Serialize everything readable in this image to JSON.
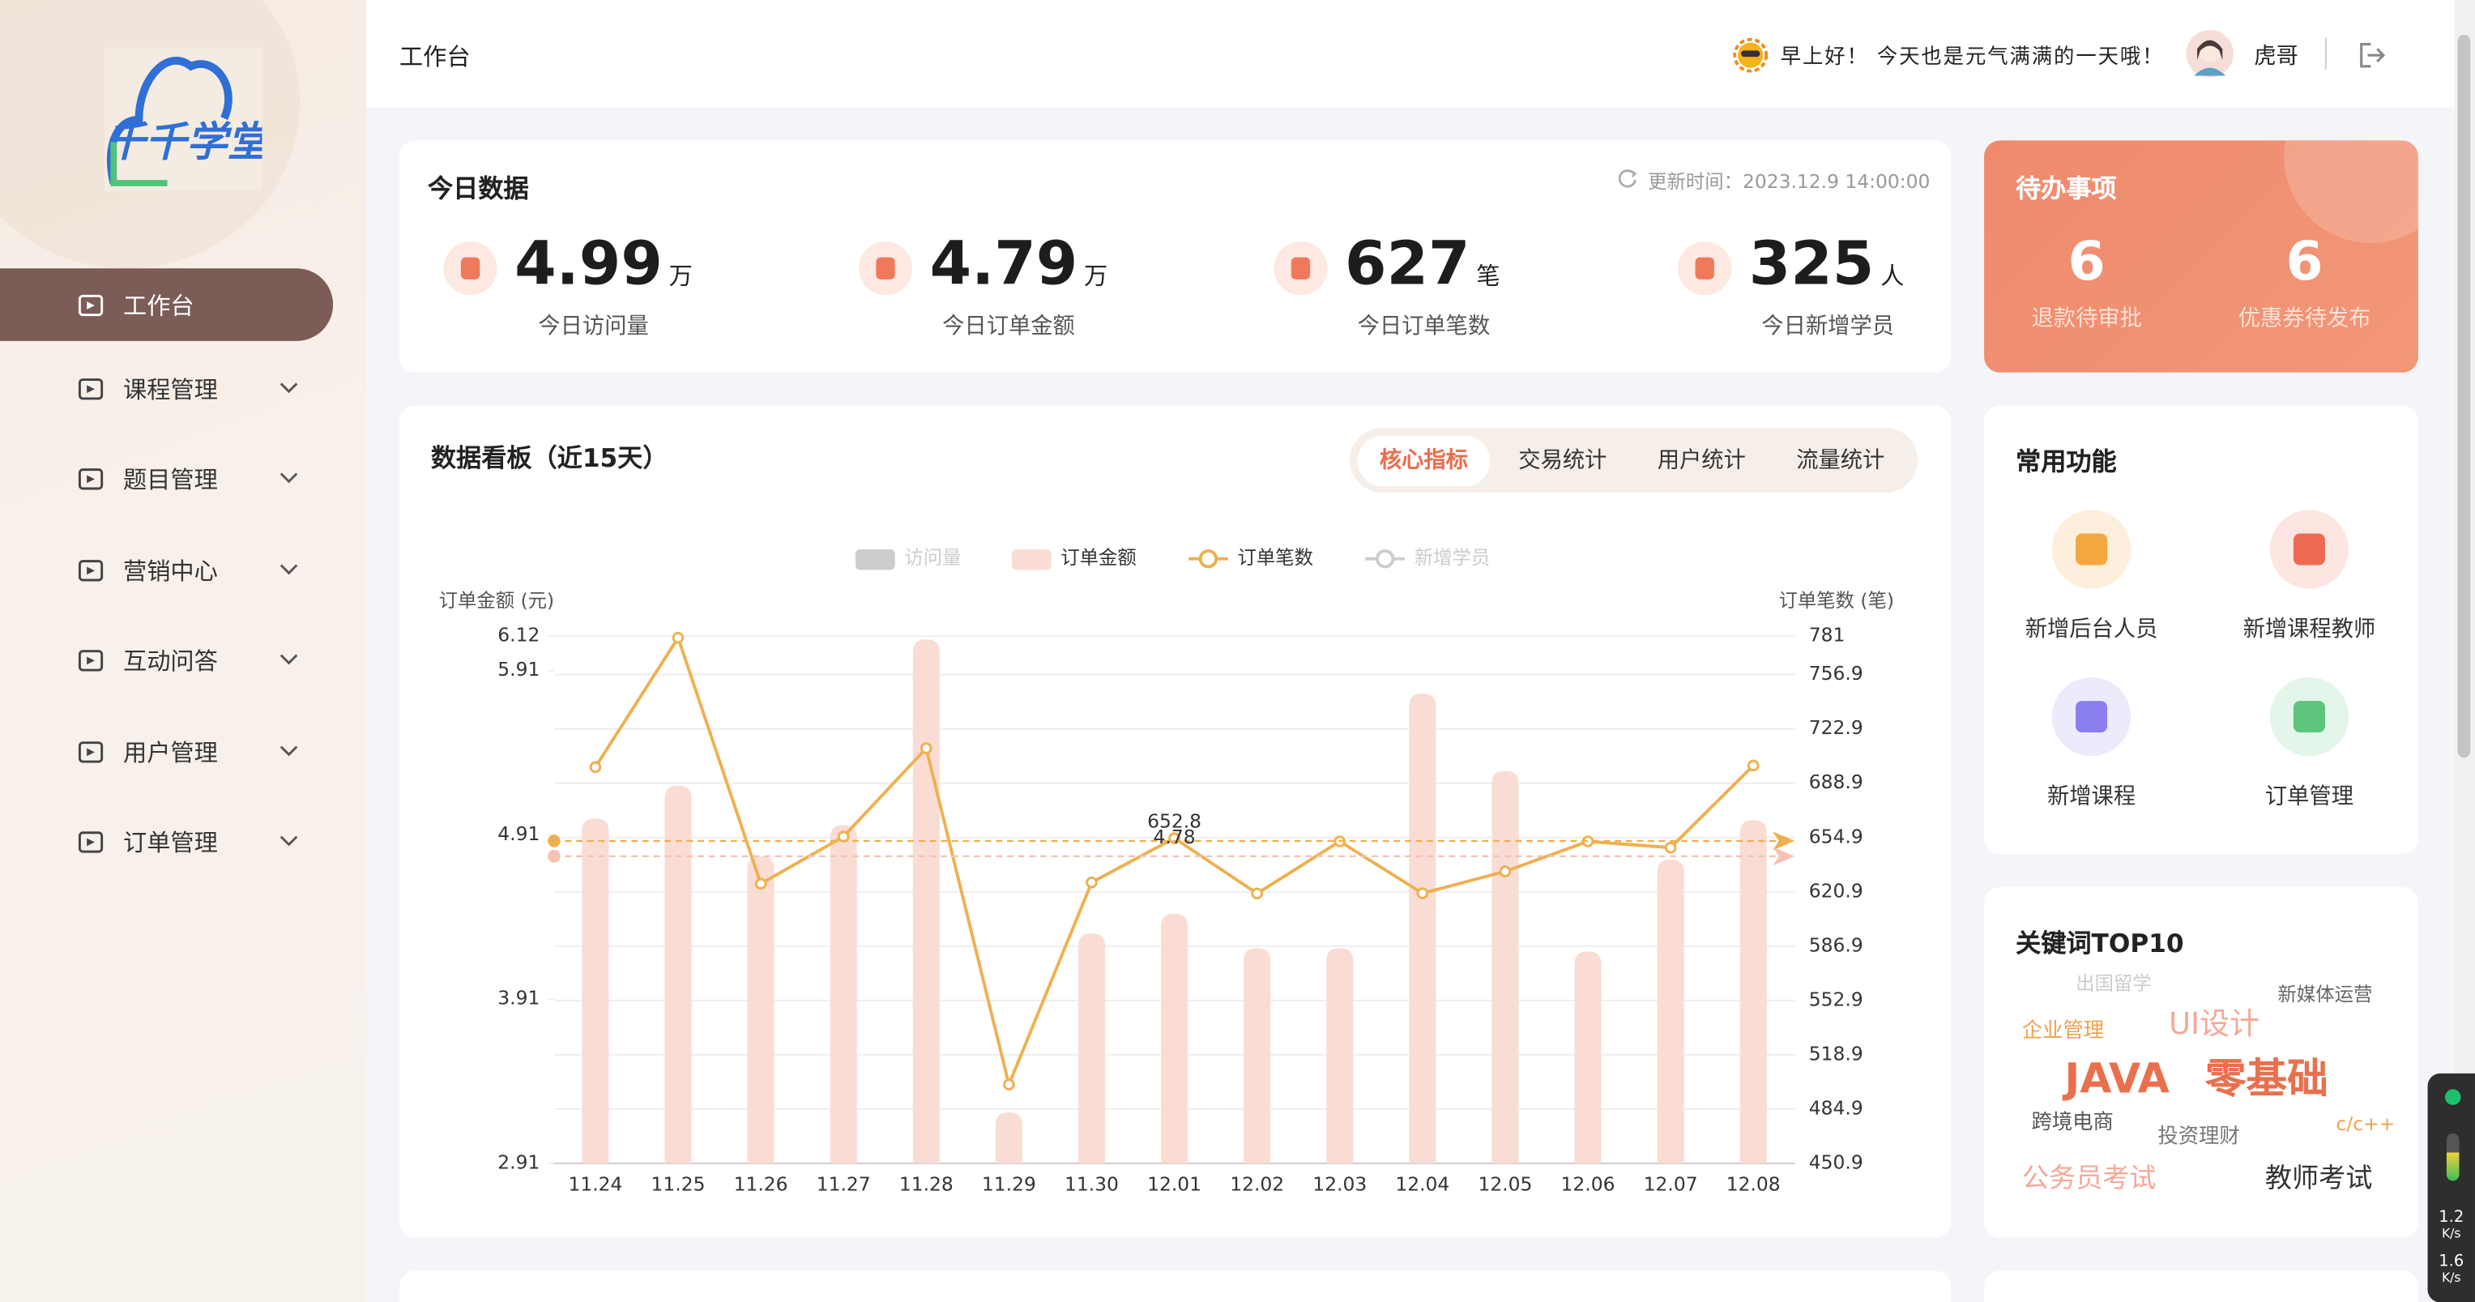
{
  "logo": {
    "text": "千千学堂"
  },
  "sidebar": {
    "items": [
      "工作台",
      "课程管理",
      "题目管理",
      "营销中心",
      "互动问答",
      "用户管理",
      "订单管理"
    ]
  },
  "header": {
    "title": "工作台",
    "greeting": "早上好！ 今天也是元气满满的一天哦！",
    "user": "虎哥"
  },
  "today": {
    "title": "今日数据",
    "updated": "更新时间：2023.12.9 14:00:00",
    "stats": [
      {
        "value": 4.99,
        "unit": "万",
        "label": "今日访问量"
      },
      {
        "value": 4.79,
        "unit": "万",
        "label": "今日订单金额"
      },
      {
        "value": 627,
        "unit": "笔",
        "label": "今日订单笔数"
      },
      {
        "value": 325,
        "unit": "人",
        "label": "今日新增学员"
      }
    ]
  },
  "todo": {
    "title": "待办事项",
    "items": [
      {
        "count": 6,
        "label": "退款待审批"
      },
      {
        "count": 6,
        "label": "优惠券待发布"
      }
    ]
  },
  "board": {
    "tabs": [
      "核心指标",
      "交易统计",
      "用户统计",
      "流量统计"
    ]
  },
  "chart_data": {
    "type": "bar",
    "title": "数据看板（近15天）",
    "y_label": "订单金额 (元)",
    "y2_label": "订单笔数 (笔)",
    "categories": [
      "11.24",
      "11.25",
      "11.26",
      "11.27",
      "11.28",
      "11.29",
      "11.30",
      "12.01",
      "12.02",
      "12.03",
      "12.04",
      "12.05",
      "12.06",
      "12.07",
      "12.08"
    ],
    "series": [
      {
        "name": "访问量",
        "color": "#cccccc",
        "visible": false
      },
      {
        "name": "订单金额",
        "type": "bar",
        "color": "#f9ddd5",
        "values": [
          5.01,
          5.21,
          4.78,
          4.97,
          6.1,
          3.22,
          4.31,
          4.43,
          4.22,
          4.22,
          5.77,
          5.3,
          4.2,
          4.76,
          5.0
        ]
      },
      {
        "name": "订单笔数",
        "type": "line",
        "axis": "y2",
        "color": "#eeb04f",
        "values": [
          699,
          780,
          626,
          655.5,
          710.8,
          500.3,
          626.8,
          654.5,
          619.9,
          652.5,
          620,
          633.7,
          652.5,
          648.6,
          700
        ]
      },
      {
        "name": "新增学员",
        "color": "#cccccc",
        "visible": false
      }
    ],
    "mark_lines": [
      {
        "value": 652.8,
        "axis": "y2",
        "color": "#eeb04f"
      },
      {
        "value": 4.78,
        "color": "#f6c2b4"
      }
    ],
    "ylim": [
      2.91,
      6.12
    ],
    "yticks": [
      2.91,
      3.91,
      4.91,
      5.91,
      6.12
    ],
    "y2lim": [
      450.9,
      781
    ],
    "y2ticks": [
      450.9,
      484.9,
      518.9,
      552.9,
      586.9,
      620.9,
      654.9,
      688.9,
      722.9,
      756.9,
      781
    ],
    "grid": true
  },
  "shortcuts": {
    "title": "常用功能",
    "items": [
      "新增后台人员",
      "新增课程教师",
      "新增课程",
      "订单管理"
    ]
  },
  "keywords": {
    "title": "关键词TOP10",
    "words": [
      "出国留学",
      "新媒体运营",
      "企业管理",
      "UI设计",
      "JAVA",
      "零基础",
      "跨境电商",
      "投资理财",
      "c/c++",
      "公务员考试",
      "教师考试"
    ]
  },
  "network": [
    "1.2",
    "K/s",
    "1.6",
    "K/s"
  ]
}
